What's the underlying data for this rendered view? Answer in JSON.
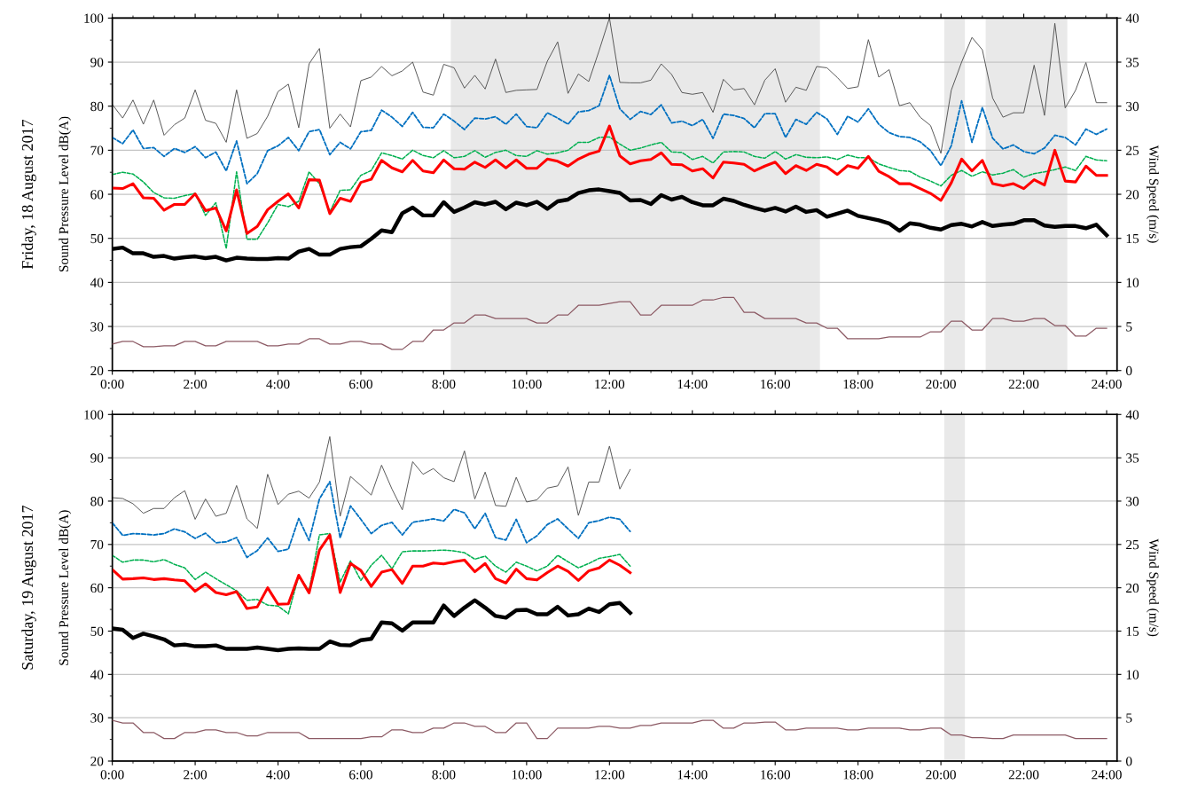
{
  "chart_data": [
    {
      "type": "line",
      "title": "Friday, 18 August 2017",
      "ylabel": "Sound Pressure Level dB(A)",
      "y2label": "Wind Speed (m/s)",
      "x": [
        0,
        0.25,
        0.5,
        0.75,
        1,
        1.25,
        1.5,
        1.75,
        2,
        2.25,
        2.5,
        2.75,
        3,
        3.25,
        3.5,
        3.75,
        4,
        4.25,
        4.5,
        4.75,
        5,
        5.25,
        5.5,
        5.75,
        6,
        6.25,
        6.5,
        6.75,
        7,
        7.25,
        7.5,
        7.75,
        8,
        8.25,
        8.5,
        8.75,
        9,
        9.25,
        9.5,
        9.75,
        10,
        10.25,
        10.5,
        10.75,
        11,
        11.25,
        11.5,
        11.75,
        12,
        12.25,
        12.5,
        12.75,
        13,
        13.25,
        13.5,
        13.75,
        14,
        14.25,
        14.5,
        14.75,
        15,
        15.25,
        15.5,
        15.75,
        16,
        16.25,
        16.5,
        16.75,
        17,
        17.25,
        17.5,
        17.75,
        18,
        18.25,
        18.5,
        18.75,
        19,
        19.25,
        19.5,
        19.75,
        20,
        20.25,
        20.5,
        20.75,
        21,
        21.25,
        21.5,
        21.75,
        22,
        22.25,
        22.5,
        22.75,
        23,
        23.25,
        23.5,
        23.75,
        24
      ],
      "xlim": [
        0,
        24.25
      ],
      "xticks": [
        {
          "value": 0,
          "label": "0:00"
        },
        {
          "value": 2,
          "label": "2:00"
        },
        {
          "value": 4,
          "label": "4:00"
        },
        {
          "value": 6,
          "label": "6:00"
        },
        {
          "value": 8,
          "label": "8:00"
        },
        {
          "value": 10,
          "label": "10:00"
        },
        {
          "value": 12,
          "label": "12:00"
        },
        {
          "value": 14,
          "label": "14:00"
        },
        {
          "value": 16,
          "label": "16:00"
        },
        {
          "value": 18,
          "label": "18:00"
        },
        {
          "value": 20,
          "label": "20:00"
        },
        {
          "value": 22,
          "label": "22:00"
        },
        {
          "value": 24,
          "label": "24:00"
        }
      ],
      "ylim": [
        20,
        100
      ],
      "yticks": [
        20,
        30,
        40,
        50,
        60,
        70,
        80,
        90,
        100
      ],
      "y2lim": [
        0,
        40
      ],
      "y2ticks": [
        0,
        5,
        10,
        15,
        20,
        25,
        30,
        35,
        40
      ],
      "grid": "y",
      "bands": [
        {
          "axis": "x",
          "from": 8.17,
          "to": 17.08,
          "color": "#e9e9e9"
        },
        {
          "axis": "x",
          "from": 20.08,
          "to": 20.58,
          "color": "#e9e9e9"
        },
        {
          "axis": "x",
          "from": 21.08,
          "to": 23.05,
          "color": "#e9e9e9"
        }
      ],
      "series": [
        {
          "color": "#555555",
          "values": [
            80.4,
            77.3,
            81.4,
            75.9,
            81.4,
            73.4,
            75.8,
            77.3,
            83.7,
            76.8,
            76.1,
            71.8,
            83.7,
            72.7,
            73.8,
            77.7,
            83.3,
            85.0,
            75.1,
            89.6,
            93.1,
            75.0,
            78.2,
            75.3,
            85.8,
            86.6,
            89.0,
            86.9,
            88.0,
            90.0,
            83.2,
            82.5,
            89.5,
            88.7,
            84.1,
            87.0,
            83.9,
            90.7,
            83.1,
            83.6,
            83.7,
            83.8,
            90.2,
            94.6,
            82.9,
            87.3,
            85.6,
            92.6,
            100.0,
            85.4,
            85.3,
            85.3,
            85.9,
            89.6,
            87.2,
            83.1,
            82.7,
            83.1,
            78.6,
            86.1,
            83.7,
            84.0,
            80.3,
            85.9,
            88.5,
            80.9,
            84.3,
            83.6,
            89.0,
            88.7,
            86.5,
            84.0,
            84.4,
            95.1,
            86.6,
            88.3,
            80.1,
            80.8,
            77.5,
            75.6,
            69.3,
            83.6,
            90.0,
            95.6,
            92.8,
            81.8,
            77.5,
            78.5,
            78.5,
            89.3,
            77.9,
            98.8,
            79.6,
            83.6,
            89.9,
            80.8,
            80.8
          ]
        },
        {
          "color": "#0070c0",
          "line_style": "dashed",
          "values": [
            72.9,
            71.5,
            74.6,
            70.4,
            70.6,
            68.6,
            70.4,
            69.5,
            70.8,
            68.3,
            69.6,
            65.3,
            72.1,
            62.4,
            64.7,
            69.9,
            71.0,
            72.9,
            69.9,
            74.2,
            74.7,
            69.0,
            71.8,
            70.3,
            74.2,
            74.5,
            79.1,
            77.5,
            75.4,
            78.6,
            75.2,
            75.1,
            78.2,
            76.6,
            74.7,
            77.3,
            77.1,
            77.6,
            75.9,
            78.2,
            75.4,
            75.1,
            78.5,
            77.3,
            75.9,
            78.7,
            79.0,
            80.1,
            87.0,
            79.4,
            77.0,
            78.8,
            78.1,
            80.3,
            76.2,
            76.6,
            75.6,
            77.0,
            72.7,
            78.2,
            77.9,
            77.2,
            75.1,
            78.3,
            78.3,
            72.9,
            77.0,
            75.9,
            78.6,
            77.1,
            73.6,
            77.7,
            76.4,
            79.4,
            75.9,
            74.0,
            73.1,
            72.9,
            71.9,
            69.9,
            66.5,
            71.0,
            81.2,
            71.8,
            79.7,
            72.7,
            70.3,
            71.2,
            69.7,
            69.2,
            70.5,
            73.4,
            72.9,
            71.2,
            74.8,
            73.6,
            74.8
          ]
        },
        {
          "color": "#00b050",
          "line_style": "dashed",
          "values": [
            64.5,
            65.0,
            64.6,
            62.8,
            60.4,
            59.2,
            59.1,
            59.7,
            60.2,
            55.2,
            58.1,
            47.7,
            65.1,
            49.8,
            49.8,
            53.5,
            57.7,
            57.2,
            58.4,
            65.1,
            62.4,
            56.0,
            60.9,
            61.0,
            64.3,
            65.4,
            69.4,
            68.8,
            68.0,
            70.0,
            68.8,
            68.3,
            69.9,
            68.3,
            68.6,
            69.9,
            68.4,
            69.5,
            70.0,
            68.8,
            68.6,
            69.9,
            69.1,
            69.4,
            70.0,
            71.8,
            71.8,
            72.9,
            73.0,
            71.4,
            70.0,
            70.5,
            71.2,
            71.8,
            69.6,
            69.5,
            67.9,
            68.6,
            67.1,
            69.6,
            69.7,
            69.6,
            68.6,
            68.2,
            69.7,
            68.0,
            69.0,
            68.4,
            68.3,
            68.5,
            67.9,
            68.9,
            68.3,
            68.3,
            66.9,
            66.1,
            65.4,
            65.2,
            63.9,
            63.0,
            61.9,
            64.3,
            65.4,
            64.1,
            65.1,
            64.4,
            64.8,
            65.6,
            63.9,
            64.7,
            65.1,
            65.6,
            66.2,
            65.4,
            68.6,
            67.8,
            67.6
          ]
        },
        {
          "color": "#ff0000",
          "values": [
            61.4,
            61.3,
            62.4,
            59.2,
            59.1,
            56.4,
            57.7,
            57.7,
            60.1,
            56.3,
            56.9,
            51.7,
            61.0,
            51.1,
            52.7,
            56.5,
            58.4,
            60.1,
            56.9,
            63.3,
            63.2,
            55.6,
            59.1,
            58.4,
            62.7,
            63.4,
            67.7,
            66.0,
            65.1,
            67.7,
            65.3,
            64.9,
            67.8,
            65.8,
            65.7,
            67.3,
            66.1,
            67.8,
            66.0,
            67.8,
            65.9,
            65.9,
            68.0,
            67.5,
            66.4,
            68.0,
            69.1,
            69.8,
            75.5,
            68.7,
            66.9,
            67.6,
            67.9,
            69.4,
            66.8,
            66.7,
            65.3,
            65.8,
            63.7,
            67.3,
            67.1,
            66.8,
            65.3,
            66.4,
            67.3,
            64.7,
            66.5,
            65.4,
            66.8,
            66.2,
            64.5,
            66.5,
            65.9,
            68.6,
            65.2,
            64.0,
            62.4,
            62.4,
            61.3,
            60.2,
            58.6,
            62.6,
            68.0,
            65.3,
            67.7,
            62.4,
            61.9,
            62.4,
            61.3,
            63.3,
            62.1,
            70.0,
            63.0,
            62.8,
            66.4,
            64.3,
            64.3
          ]
        },
        {
          "color": "#000000",
          "values": [
            47.6,
            47.9,
            46.6,
            46.6,
            45.8,
            46.0,
            45.4,
            45.7,
            45.9,
            45.5,
            45.8,
            45.0,
            45.6,
            45.4,
            45.3,
            45.3,
            45.5,
            45.4,
            47.0,
            47.6,
            46.3,
            46.3,
            47.6,
            48.0,
            48.2,
            49.9,
            51.8,
            51.4,
            55.7,
            57.0,
            55.2,
            55.2,
            58.2,
            56.0,
            57.0,
            58.2,
            57.7,
            58.3,
            56.6,
            58.1,
            57.5,
            58.3,
            56.7,
            58.4,
            58.8,
            60.3,
            60.9,
            61.1,
            60.7,
            60.3,
            58.6,
            58.7,
            57.8,
            59.8,
            58.8,
            59.4,
            58.2,
            57.5,
            57.5,
            59.0,
            58.5,
            57.6,
            56.9,
            56.3,
            56.9,
            56.1,
            57.2,
            56.0,
            56.4,
            54.9,
            55.6,
            56.3,
            55.1,
            54.6,
            54.1,
            53.4,
            51.7,
            53.4,
            53.1,
            52.4,
            52.0,
            53.0,
            53.3,
            52.7,
            53.7,
            52.8,
            53.1,
            53.3,
            54.1,
            54.1,
            52.9,
            52.6,
            52.8,
            52.8,
            52.3,
            53.1,
            50.7
          ]
        },
        {
          "color": "#8c5a64",
          "axis": "y2",
          "values": [
            3.0,
            3.3,
            3.3,
            2.7,
            2.7,
            2.8,
            2.8,
            3.3,
            3.3,
            2.8,
            2.8,
            3.3,
            3.3,
            3.3,
            3.3,
            2.8,
            2.8,
            3.0,
            3.0,
            3.6,
            3.6,
            3.0,
            3.0,
            3.3,
            3.3,
            3.0,
            3.0,
            2.4,
            2.4,
            3.3,
            3.3,
            4.6,
            4.6,
            5.4,
            5.4,
            6.3,
            6.3,
            5.9,
            5.9,
            5.9,
            5.9,
            5.4,
            5.4,
            6.3,
            6.3,
            7.4,
            7.4,
            7.4,
            7.6,
            7.8,
            7.8,
            6.3,
            6.3,
            7.4,
            7.4,
            7.4,
            7.4,
            8.0,
            8.0,
            8.3,
            8.3,
            6.6,
            6.6,
            5.9,
            5.9,
            5.9,
            5.9,
            5.4,
            5.4,
            4.8,
            4.8,
            3.6,
            3.6,
            3.6,
            3.6,
            3.8,
            3.8,
            3.8,
            3.8,
            4.4,
            4.4,
            5.6,
            5.6,
            4.6,
            4.6,
            5.9,
            5.9,
            5.6,
            5.6,
            5.9,
            5.9,
            5.1,
            5.1,
            3.9,
            3.9,
            4.8,
            4.8
          ]
        }
      ]
    },
    {
      "type": "line",
      "title": "Saturday, 19 August 2017",
      "ylabel": "Sound Pressure Level dB(A)",
      "y2label": "Wind Speed (m/s)",
      "x": [
        0,
        0.25,
        0.5,
        0.75,
        1,
        1.25,
        1.5,
        1.75,
        2,
        2.25,
        2.5,
        2.75,
        3,
        3.25,
        3.5,
        3.75,
        4,
        4.25,
        4.5,
        4.75,
        5,
        5.25,
        5.5,
        5.75,
        6,
        6.25,
        6.5,
        6.75,
        7,
        7.25,
        7.5,
        7.75,
        8,
        8.25,
        8.5,
        8.75,
        9,
        9.25,
        9.5,
        9.75,
        10,
        10.25,
        10.5,
        10.75,
        11,
        11.25,
        11.5,
        11.75,
        12,
        12.25,
        12.5,
        12.75,
        13,
        13.25,
        13.5,
        13.75,
        14,
        14.25,
        14.5,
        14.75,
        15,
        15.25,
        15.5,
        15.75,
        16,
        16.25,
        16.5,
        16.75,
        17,
        17.25,
        17.5,
        17.75,
        18,
        18.25,
        18.5,
        18.75,
        19,
        19.25,
        19.5,
        19.75,
        20,
        20.25,
        20.5,
        20.75,
        21,
        21.25,
        21.5,
        21.75,
        22,
        22.25,
        22.5,
        22.75,
        23,
        23.25,
        23.5,
        23.75,
        24
      ],
      "xlim": [
        0,
        24.25
      ],
      "xticks": [
        {
          "value": 0,
          "label": "0:00"
        },
        {
          "value": 2,
          "label": "2:00"
        },
        {
          "value": 4,
          "label": "4:00"
        },
        {
          "value": 6,
          "label": "6:00"
        },
        {
          "value": 8,
          "label": "8:00"
        },
        {
          "value": 10,
          "label": "10:00"
        },
        {
          "value": 12,
          "label": "12:00"
        },
        {
          "value": 14,
          "label": "14:00"
        },
        {
          "value": 16,
          "label": "16:00"
        },
        {
          "value": 18,
          "label": "18:00"
        },
        {
          "value": 20,
          "label": "20:00"
        },
        {
          "value": 22,
          "label": "22:00"
        },
        {
          "value": 24,
          "label": "24:00"
        }
      ],
      "ylim": [
        20,
        100
      ],
      "yticks": [
        20,
        30,
        40,
        50,
        60,
        70,
        80,
        90,
        100
      ],
      "y2lim": [
        0,
        40
      ],
      "y2ticks": [
        0,
        5,
        10,
        15,
        20,
        25,
        30,
        35,
        40
      ],
      "grid": "y",
      "bands": [
        {
          "axis": "x",
          "from": 20.08,
          "to": 20.58,
          "color": "#e9e9e9"
        }
      ],
      "series": [
        {
          "color": "#555555",
          "x": [
            0,
            0.25,
            0.5,
            0.75,
            1,
            1.25,
            1.5,
            1.75,
            2,
            2.25,
            2.5,
            2.75,
            3,
            3.25,
            3.5,
            3.75,
            4,
            4.25,
            4.5,
            4.75,
            5,
            5.25,
            5.5,
            5.75,
            6,
            6.25,
            6.5,
            6.75,
            7,
            7.25,
            7.5,
            7.75,
            8,
            8.25,
            8.5,
            8.75,
            9,
            9.25,
            9.5,
            9.75,
            10,
            10.25,
            10.5,
            10.75,
            11,
            11.25,
            11.5,
            11.75,
            12,
            12.25,
            12.5
          ],
          "values": [
            80.8,
            80.6,
            79.4,
            77.2,
            78.3,
            78.3,
            80.8,
            82.4,
            75.8,
            80.5,
            76.5,
            77.2,
            83.6,
            75.9,
            73.7,
            86.2,
            79.2,
            81.6,
            82.3,
            80.7,
            84.4,
            94.9,
            76.5,
            85.7,
            83.6,
            81.4,
            88.3,
            82.8,
            78.0,
            89.1,
            86.2,
            87.5,
            85.4,
            84.5,
            91.6,
            80.5,
            86.7,
            79.0,
            78.8,
            85.5,
            79.8,
            80.3,
            83.0,
            83.5,
            87.9,
            76.7,
            84.4,
            84.4,
            92.7,
            82.8,
            87.3
          ]
        },
        {
          "color": "#0070c0",
          "line_style": "dashed",
          "x": [
            0,
            0.25,
            0.5,
            0.75,
            1,
            1.25,
            1.5,
            1.75,
            2,
            2.25,
            2.5,
            2.75,
            3,
            3.25,
            3.5,
            3.75,
            4,
            4.25,
            4.5,
            4.75,
            5,
            5.25,
            5.5,
            5.75,
            6,
            6.25,
            6.5,
            6.75,
            7,
            7.25,
            7.5,
            7.75,
            8,
            8.25,
            8.5,
            8.75,
            9,
            9.25,
            9.5,
            9.75,
            10,
            10.25,
            10.5,
            10.75,
            11,
            11.25,
            11.5,
            11.75,
            12,
            12.25,
            12.5
          ],
          "values": [
            75.0,
            72.1,
            72.5,
            72.4,
            72.2,
            72.5,
            73.6,
            72.9,
            71.4,
            72.6,
            70.4,
            70.6,
            71.6,
            67.0,
            68.6,
            71.5,
            68.4,
            68.9,
            76.0,
            70.9,
            80.5,
            84.5,
            71.5,
            78.9,
            75.8,
            72.5,
            74.4,
            75.1,
            72.2,
            75.1,
            75.5,
            75.9,
            75.4,
            78.1,
            77.3,
            73.6,
            77.2,
            71.6,
            71.0,
            75.8,
            70.4,
            72.0,
            74.6,
            75.9,
            73.6,
            71.4,
            75.0,
            75.5,
            76.3,
            75.8,
            73.0
          ]
        },
        {
          "color": "#00b050",
          "line_style": "dashed",
          "x": [
            0,
            0.25,
            0.5,
            0.75,
            1,
            1.25,
            1.5,
            1.75,
            2,
            2.25,
            2.5,
            2.75,
            3,
            3.25,
            3.5,
            3.75,
            4,
            4.25,
            4.5,
            4.75,
            5,
            5.25,
            5.5,
            5.75,
            6,
            6.25,
            6.5,
            6.75,
            7,
            7.25,
            7.5,
            7.75,
            8,
            8.25,
            8.5,
            8.75,
            9,
            9.25,
            9.5,
            9.75,
            10,
            10.25,
            10.5,
            10.75,
            11,
            11.25,
            11.5,
            11.75,
            12,
            12.25,
            12.5
          ],
          "values": [
            67.5,
            65.9,
            66.4,
            66.4,
            66.0,
            66.5,
            65.4,
            64.6,
            61.9,
            63.6,
            62.1,
            60.7,
            59.3,
            57.1,
            57.3,
            56.0,
            55.8,
            54.0,
            62.8,
            59.3,
            72.2,
            72.5,
            61.3,
            66.2,
            61.7,
            65.2,
            67.5,
            64.4,
            68.3,
            68.5,
            68.5,
            68.6,
            68.7,
            68.5,
            68.1,
            66.6,
            67.3,
            65.0,
            63.6,
            65.9,
            65.0,
            63.9,
            65.0,
            67.5,
            66.0,
            64.6,
            65.6,
            66.8,
            67.2,
            67.7,
            65.0
          ]
        },
        {
          "color": "#ff0000",
          "x": [
            0,
            0.25,
            0.5,
            0.75,
            1,
            1.25,
            1.5,
            1.75,
            2,
            2.25,
            2.5,
            2.75,
            3,
            3.25,
            3.5,
            3.75,
            4,
            4.25,
            4.5,
            4.75,
            5,
            5.25,
            5.5,
            5.75,
            6,
            6.25,
            6.5,
            6.75,
            7,
            7.25,
            7.5,
            7.75,
            8,
            8.25,
            8.5,
            8.75,
            9,
            9.25,
            9.5,
            9.75,
            10,
            10.25,
            10.5,
            10.75,
            11,
            11.25,
            11.5,
            11.75,
            12,
            12.25,
            12.5
          ],
          "values": [
            64.2,
            62.0,
            62.1,
            62.3,
            61.9,
            62.1,
            61.8,
            61.6,
            59.2,
            60.9,
            58.9,
            58.4,
            59.1,
            55.2,
            55.6,
            60.0,
            56.2,
            56.3,
            62.9,
            58.8,
            68.7,
            72.2,
            58.9,
            65.6,
            64.0,
            60.3,
            63.6,
            64.2,
            61.0,
            65.0,
            65.0,
            65.7,
            65.5,
            66.0,
            66.4,
            63.7,
            65.6,
            62.1,
            61.1,
            64.3,
            62.1,
            61.8,
            63.5,
            65.0,
            63.8,
            61.7,
            63.9,
            64.6,
            66.4,
            65.2,
            63.5
          ]
        },
        {
          "color": "#000000",
          "x": [
            0,
            0.25,
            0.5,
            0.75,
            1,
            1.25,
            1.5,
            1.75,
            2,
            2.25,
            2.5,
            2.75,
            3,
            3.25,
            3.5,
            3.75,
            4,
            4.25,
            4.5,
            4.75,
            5,
            5.25,
            5.5,
            5.75,
            6,
            6.25,
            6.5,
            6.75,
            7,
            7.25,
            7.5,
            7.75,
            8,
            8.25,
            8.5,
            8.75,
            9,
            9.25,
            9.5,
            9.75,
            10,
            10.25,
            10.5,
            10.75,
            11,
            11.25,
            11.5,
            11.75,
            12,
            12.25,
            12.5
          ],
          "values": [
            50.6,
            50.3,
            48.4,
            49.4,
            48.8,
            48.1,
            46.7,
            46.9,
            46.5,
            46.5,
            46.7,
            45.9,
            45.9,
            45.9,
            46.2,
            45.9,
            45.6,
            45.9,
            46.0,
            45.9,
            45.9,
            47.6,
            46.8,
            46.7,
            47.9,
            48.2,
            52.0,
            51.8,
            50.1,
            52.0,
            52.0,
            52.0,
            55.9,
            53.5,
            55.4,
            57.1,
            55.4,
            53.5,
            53.1,
            54.8,
            54.9,
            53.9,
            53.9,
            55.6,
            53.6,
            53.9,
            55.2,
            54.4,
            56.2,
            56.5,
            54.2
          ]
        },
        {
          "color": "#8c5a64",
          "axis": "y2",
          "values": [
            4.7,
            4.4,
            4.4,
            3.3,
            3.3,
            2.6,
            2.6,
            3.3,
            3.3,
            3.6,
            3.6,
            3.3,
            3.3,
            2.9,
            2.9,
            3.3,
            3.3,
            3.3,
            3.3,
            2.6,
            2.6,
            2.6,
            2.6,
            2.6,
            2.6,
            2.8,
            2.8,
            3.6,
            3.6,
            3.3,
            3.3,
            3.8,
            3.8,
            4.4,
            4.4,
            4.0,
            4.0,
            3.3,
            3.3,
            4.4,
            4.4,
            2.6,
            2.6,
            3.8,
            3.8,
            3.8,
            3.8,
            4.0,
            4.0,
            3.8,
            3.8,
            4.1,
            4.1,
            4.4,
            4.4,
            4.4,
            4.4,
            4.7,
            4.7,
            3.8,
            3.8,
            4.4,
            4.4,
            4.5,
            4.5,
            3.6,
            3.6,
            3.8,
            3.8,
            3.8,
            3.8,
            3.6,
            3.6,
            3.8,
            3.8,
            3.8,
            3.8,
            3.6,
            3.6,
            3.8,
            3.8,
            3.0,
            3.0,
            2.7,
            2.7,
            2.6,
            2.6,
            3.0,
            3.0,
            3.0,
            3.0,
            3.0,
            3.0,
            2.6,
            2.6,
            2.6,
            2.6
          ]
        }
      ]
    }
  ]
}
